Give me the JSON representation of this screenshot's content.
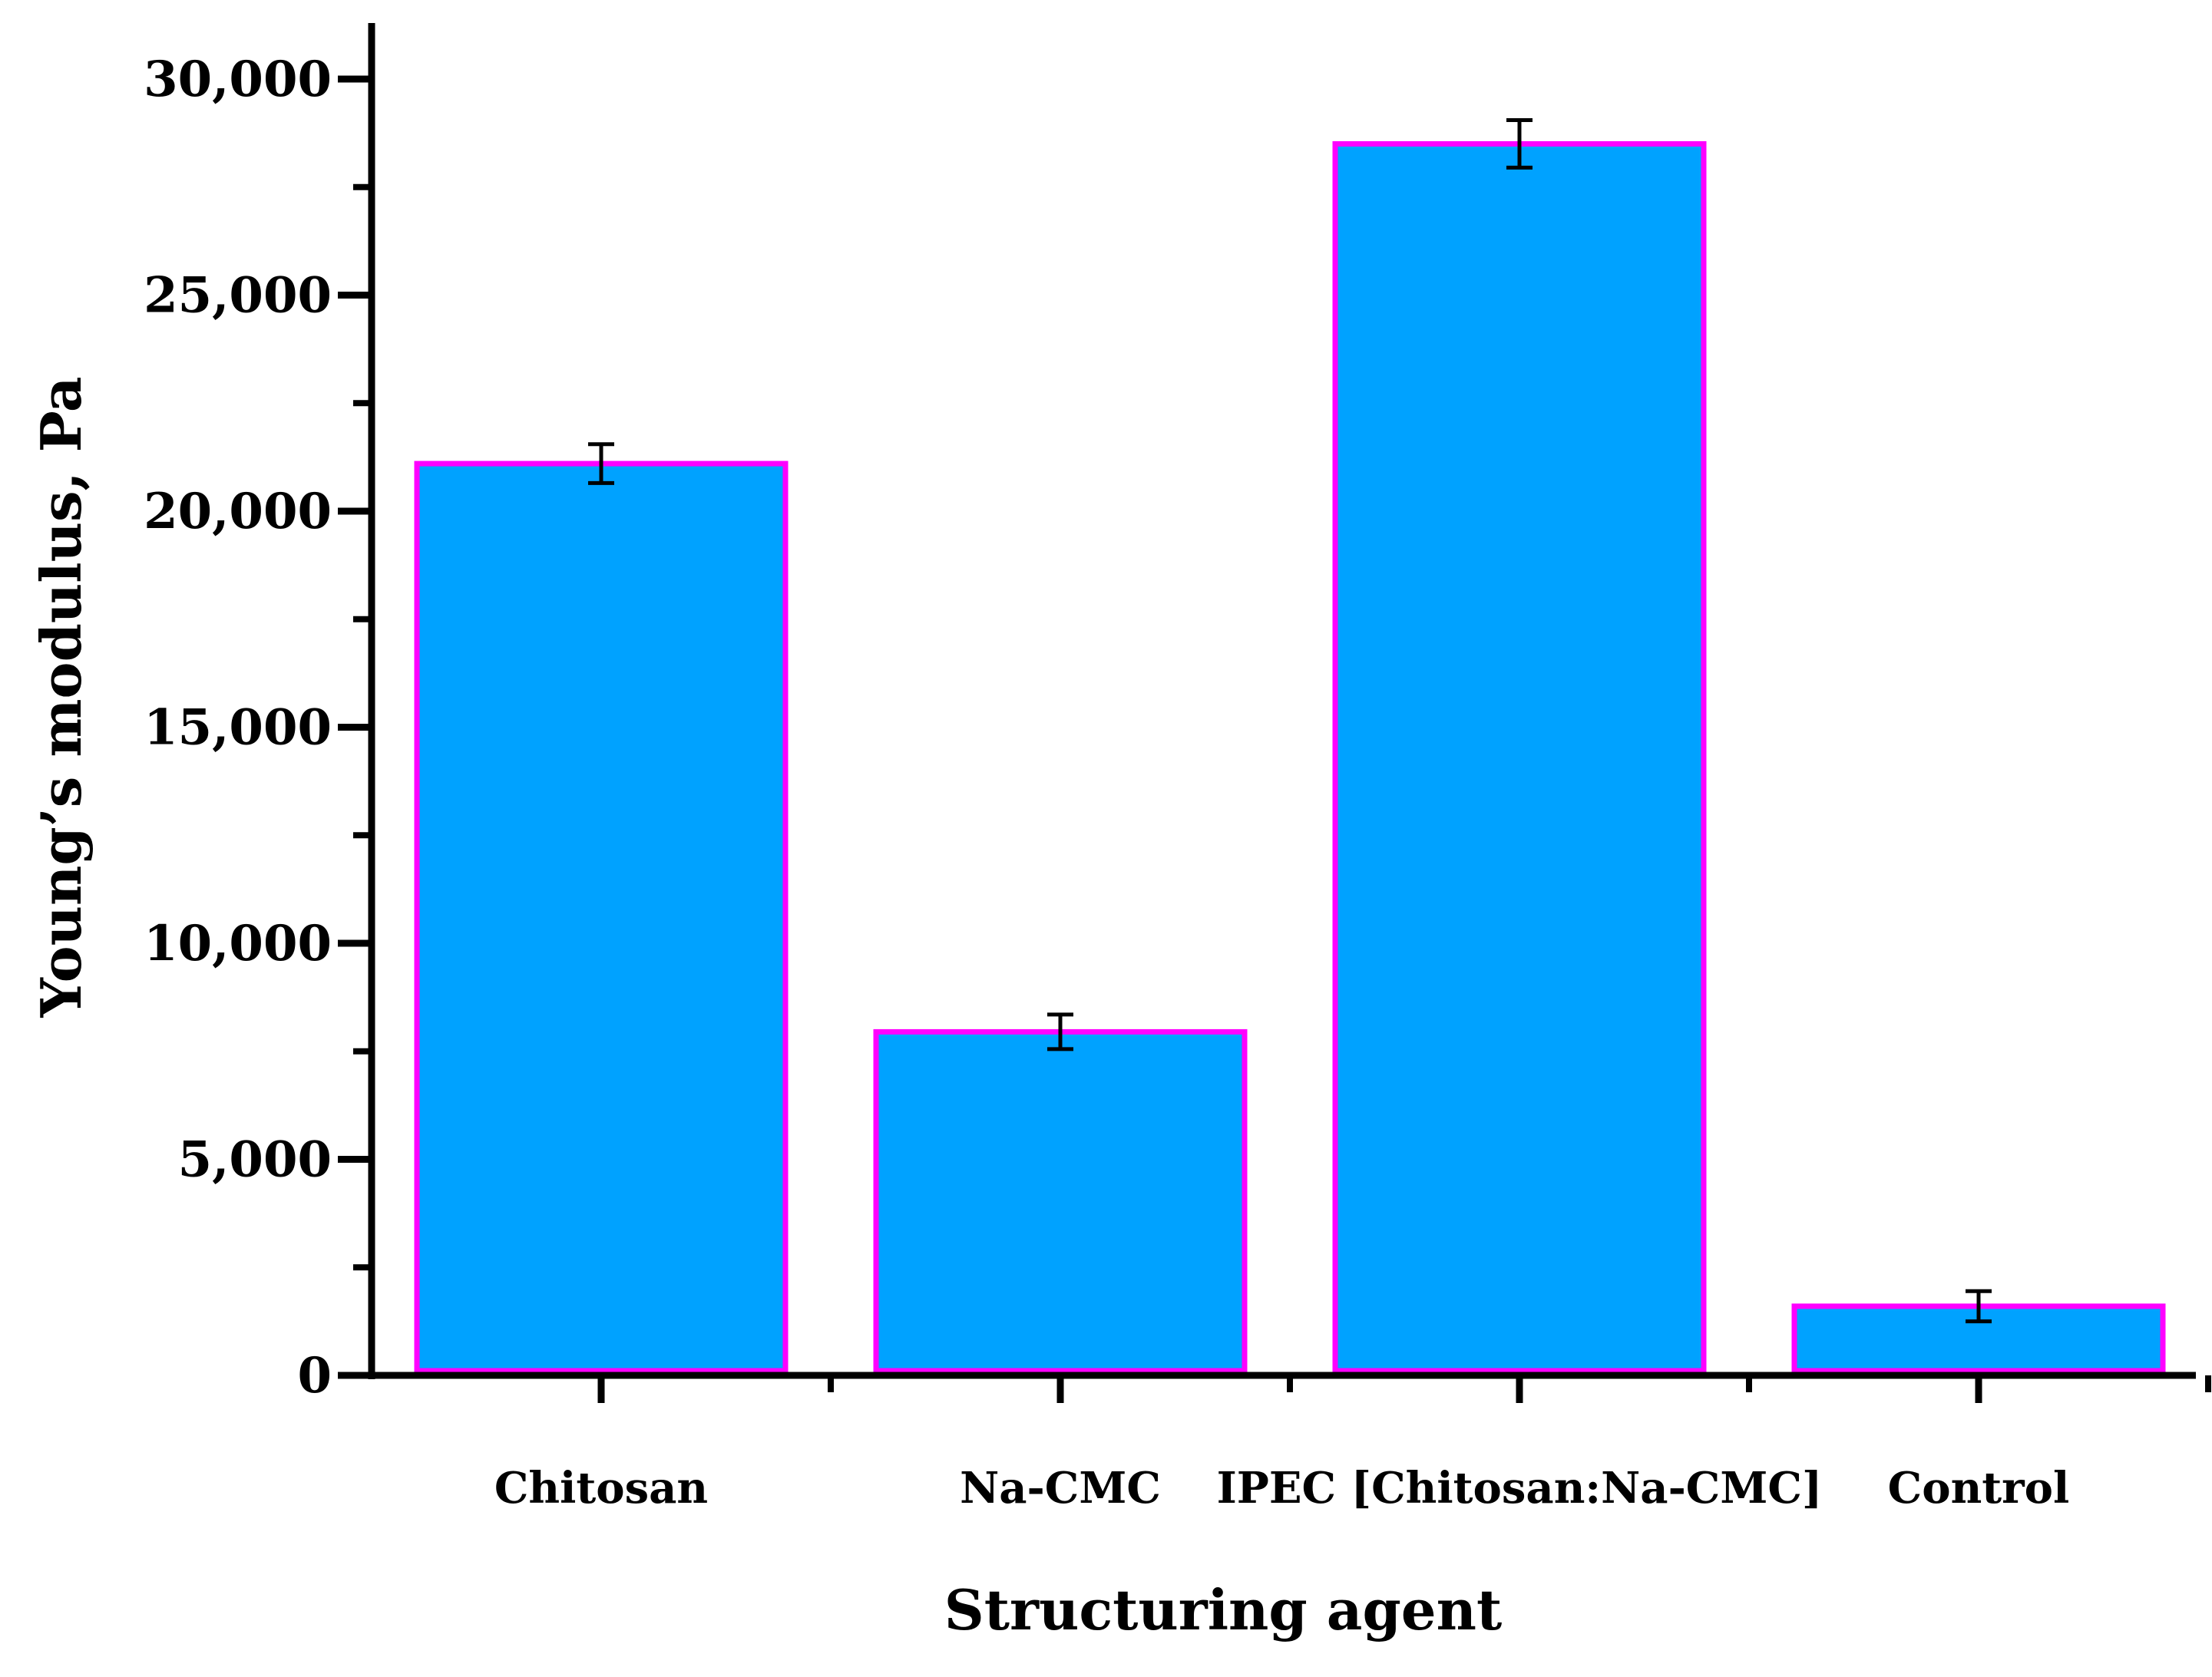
{
  "chart_data": {
    "type": "bar",
    "title": "",
    "xlabel": "Structuring agent",
    "ylabel": "Young’s modulus, Pa",
    "categories": [
      "Chitosan",
      "Na-CMC",
      "IPEC [Chitosan:Na-CMC]",
      "Control"
    ],
    "values": [
      21100,
      7950,
      28500,
      1600
    ],
    "errors": [
      450,
      400,
      550,
      350
    ],
    "ylim": [
      0,
      30000
    ],
    "yticks": [
      0,
      5000,
      10000,
      15000,
      20000,
      25000,
      30000
    ],
    "ytick_labels": [
      "0",
      "5,000",
      "10,000",
      "15,000",
      "20,000",
      "25,000",
      "30,000"
    ],
    "grid": false,
    "legend": "none",
    "colors": {
      "bar_fill": "#00a2ff",
      "bar_edge": "#ff00ff",
      "axis": "#000000",
      "error_bar": "#000000"
    }
  }
}
